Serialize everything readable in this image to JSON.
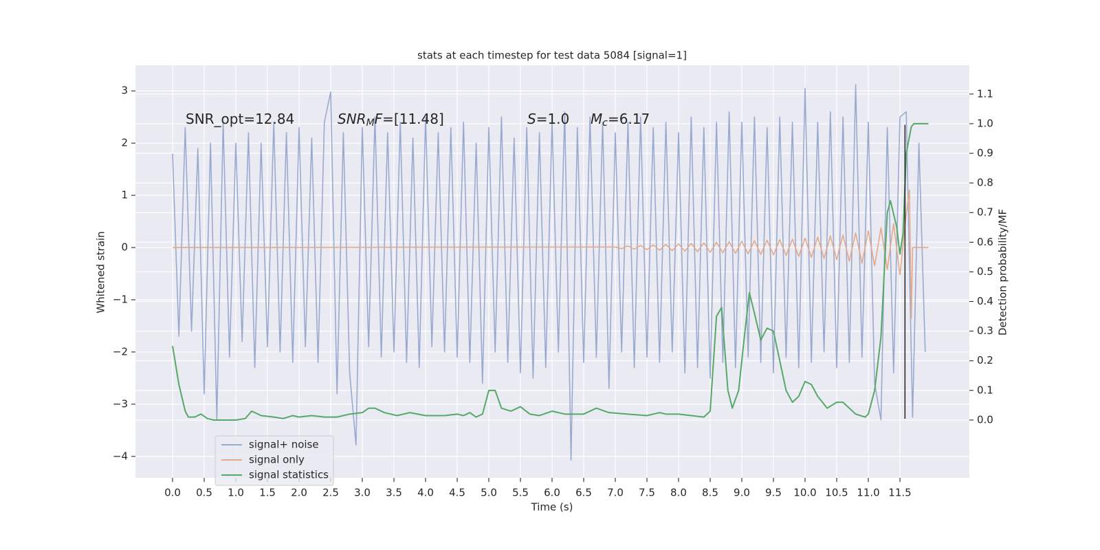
{
  "chart_data": {
    "type": "line",
    "title": "stats at each timestep for test data 5084 [signal=1]",
    "xlabel": "Time (s)",
    "ylabel": "Whitened strain",
    "y2label": "Detection probability/MF",
    "xlim": [
      -0.587,
      12.598
    ],
    "ylim": [
      -4.41,
      3.49
    ],
    "y2lim": [
      -0.195,
      1.197
    ],
    "xticks": [
      {
        "value": 0,
        "label": "0.0"
      },
      0.5,
      {
        "value": 1,
        "label": "1.0"
      },
      1.5,
      {
        "value": 2,
        "label": "2.0"
      },
      2.5,
      {
        "value": 3,
        "label": "3.0"
      },
      3.5,
      {
        "value": 4,
        "label": "4.0"
      },
      4.5,
      {
        "value": 5,
        "label": "5.0"
      },
      5.5,
      {
        "value": 6,
        "label": "6.0"
      },
      6.5,
      {
        "value": 7,
        "label": "7.0"
      },
      7.5,
      {
        "value": 8,
        "label": "8.0"
      },
      8.5,
      {
        "value": 9,
        "label": "9.0"
      },
      9.5,
      {
        "value": 10,
        "label": "10.0"
      },
      10.5,
      {
        "value": 11,
        "label": "11.0"
      },
      11.5
    ],
    "yticks": [
      {
        "value": -4,
        "label": "−4"
      },
      {
        "value": -3,
        "label": "−3"
      },
      {
        "value": -2,
        "label": "−2"
      },
      {
        "value": -1,
        "label": "−1"
      },
      0,
      1,
      2,
      3
    ],
    "y2ticks": [
      {
        "value": 0,
        "label": "0.0"
      },
      0.1,
      0.2,
      0.3,
      0.4,
      0.5,
      0.6,
      0.7,
      0.8,
      0.9,
      {
        "value": 1,
        "label": "1.0"
      },
      1.1
    ],
    "grid": true,
    "y2grid": true,
    "legend": "lower left",
    "series": [
      {
        "name": "signal+ noise",
        "color": "#9aaacf",
        "axis": "y",
        "x": [
          0.0,
          0.1,
          0.2,
          0.3,
          0.4,
          0.5,
          0.6,
          0.7,
          0.8,
          0.9,
          1.0,
          1.1,
          1.2,
          1.3,
          1.4,
          1.5,
          1.6,
          1.7,
          1.8,
          1.9,
          2.0,
          2.1,
          2.2,
          2.3,
          2.4,
          2.5,
          2.6,
          2.7,
          2.8,
          2.9,
          3.0,
          3.1,
          3.2,
          3.3,
          3.4,
          3.5,
          3.6,
          3.7,
          3.8,
          3.9,
          4.0,
          4.1,
          4.2,
          4.3,
          4.4,
          4.5,
          4.6,
          4.7,
          4.8,
          4.9,
          5.0,
          5.1,
          5.2,
          5.3,
          5.4,
          5.5,
          5.6,
          5.7,
          5.8,
          5.9,
          6.0,
          6.1,
          6.2,
          6.3,
          6.4,
          6.5,
          6.6,
          6.7,
          6.8,
          6.9,
          7.0,
          7.1,
          7.2,
          7.3,
          7.4,
          7.5,
          7.6,
          7.7,
          7.8,
          7.9,
          8.0,
          8.1,
          8.2,
          8.3,
          8.4,
          8.5,
          8.6,
          8.7,
          8.8,
          8.9,
          9.0,
          9.1,
          9.2,
          9.3,
          9.4,
          9.5,
          9.6,
          9.7,
          9.8,
          9.9,
          10.0,
          10.1,
          10.2,
          10.3,
          10.4,
          10.5,
          10.6,
          10.7,
          10.8,
          10.9,
          11.0,
          11.1,
          11.2,
          11.3,
          11.4,
          11.5,
          11.6,
          11.7,
          11.8,
          11.9
        ],
        "values": [
          1.8,
          -1.7,
          2.3,
          -1.6,
          1.9,
          -2.8,
          2.0,
          -3.3,
          2.4,
          -2.1,
          2.0,
          -1.8,
          2.2,
          -2.3,
          2.0,
          -1.9,
          2.4,
          -2.0,
          2.2,
          -2.2,
          2.3,
          -1.9,
          2.1,
          -2.2,
          2.4,
          2.98,
          -2.8,
          2.2,
          -2.4,
          -3.78,
          2.3,
          -1.9,
          2.5,
          -2.1,
          2.2,
          -2.0,
          2.4,
          -2.2,
          2.1,
          -2.3,
          2.5,
          -1.9,
          2.2,
          -2.0,
          2.3,
          -2.1,
          2.4,
          -2.2,
          2.0,
          -2.6,
          2.3,
          -2.0,
          2.5,
          -2.2,
          2.1,
          -2.4,
          2.3,
          -2.5,
          2.2,
          -2.3,
          2.4,
          -2.0,
          2.6,
          -4.07,
          2.3,
          -2.2,
          2.5,
          -2.1,
          2.4,
          -2.7,
          2.2,
          -2.0,
          2.4,
          -2.3,
          2.5,
          -2.1,
          2.3,
          -2.2,
          2.4,
          -2.0,
          2.2,
          -2.4,
          2.5,
          -2.3,
          2.3,
          -2.5,
          2.4,
          -2.2,
          2.6,
          -2.3,
          2.4,
          -2.1,
          2.5,
          -2.2,
          2.3,
          -2.4,
          2.5,
          -2.1,
          2.4,
          -2.3,
          3.05,
          -2.2,
          2.4,
          -2.0,
          2.6,
          -2.3,
          2.5,
          -2.2,
          3.12,
          -2.1,
          2.4,
          -2.6,
          -3.3,
          2.3,
          -2.4,
          2.5,
          2.6,
          -3.25,
          2.0,
          -2.0
        ]
      },
      {
        "name": "signal only",
        "color": "#e4a98a",
        "axis": "y",
        "x": [
          0.0,
          7.0,
          7.1,
          7.2,
          7.3,
          7.4,
          7.5,
          7.6,
          7.7,
          7.8,
          7.9,
          8.0,
          8.1,
          8.2,
          8.3,
          8.4,
          8.5,
          8.6,
          8.7,
          8.8,
          8.9,
          9.0,
          9.1,
          9.2,
          9.3,
          9.4,
          9.5,
          9.6,
          9.7,
          9.8,
          9.9,
          10.0,
          10.1,
          10.2,
          10.3,
          10.4,
          10.5,
          10.6,
          10.7,
          10.8,
          10.9,
          11.0,
          11.1,
          11.2,
          11.3,
          11.4,
          11.5,
          11.6,
          11.65,
          11.68,
          11.7,
          11.95
        ],
        "values": [
          0.0,
          0.01,
          -0.02,
          0.03,
          -0.03,
          0.04,
          -0.04,
          0.05,
          -0.05,
          0.06,
          -0.06,
          0.07,
          -0.07,
          0.08,
          -0.08,
          0.09,
          -0.09,
          0.1,
          -0.1,
          0.11,
          -0.11,
          0.12,
          -0.12,
          0.13,
          -0.13,
          0.14,
          -0.14,
          0.15,
          -0.15,
          0.16,
          -0.17,
          0.18,
          -0.19,
          0.2,
          -0.21,
          0.22,
          -0.23,
          0.24,
          -0.26,
          0.28,
          -0.3,
          0.32,
          -0.35,
          0.38,
          -0.42,
          0.46,
          -0.52,
          0.65,
          1.1,
          -1.35,
          0.0,
          0.0
        ]
      },
      {
        "name": "signal statistics",
        "color": "#55a868",
        "axis": "y2",
        "x": [
          0.0,
          0.1,
          0.2,
          0.25,
          0.35,
          0.45,
          0.55,
          0.65,
          0.8,
          1.0,
          1.15,
          1.25,
          1.4,
          1.6,
          1.75,
          1.9,
          2.0,
          2.2,
          2.4,
          2.6,
          2.8,
          3.0,
          3.1,
          3.2,
          3.35,
          3.55,
          3.75,
          4.0,
          4.3,
          4.5,
          4.6,
          4.7,
          4.8,
          4.9,
          5.0,
          5.1,
          5.2,
          5.35,
          5.5,
          5.65,
          5.8,
          6.0,
          6.2,
          6.5,
          6.7,
          6.9,
          7.2,
          7.5,
          7.7,
          7.8,
          8.0,
          8.2,
          8.4,
          8.5,
          8.6,
          8.68,
          8.78,
          8.85,
          8.95,
          9.05,
          9.12,
          9.2,
          9.3,
          9.4,
          9.5,
          9.6,
          9.7,
          9.8,
          9.9,
          10.0,
          10.1,
          10.2,
          10.35,
          10.5,
          10.6,
          10.7,
          10.8,
          10.95,
          11.0,
          11.1,
          11.2,
          11.3,
          11.35,
          11.45,
          11.5,
          11.55,
          11.6,
          11.68,
          11.72,
          11.95
        ],
        "values": [
          0.25,
          0.12,
          0.03,
          0.01,
          0.01,
          0.02,
          0.005,
          0.0,
          0.0,
          0.0,
          0.005,
          0.03,
          0.015,
          0.01,
          0.005,
          0.015,
          0.01,
          0.015,
          0.01,
          0.01,
          0.02,
          0.025,
          0.04,
          0.04,
          0.025,
          0.015,
          0.025,
          0.015,
          0.015,
          0.02,
          0.015,
          0.025,
          0.01,
          0.02,
          0.1,
          0.1,
          0.04,
          0.03,
          0.045,
          0.02,
          0.015,
          0.03,
          0.02,
          0.02,
          0.04,
          0.025,
          0.02,
          0.015,
          0.025,
          0.02,
          0.02,
          0.015,
          0.01,
          0.03,
          0.35,
          0.38,
          0.1,
          0.04,
          0.1,
          0.3,
          0.43,
          0.36,
          0.27,
          0.31,
          0.3,
          0.2,
          0.1,
          0.06,
          0.08,
          0.13,
          0.12,
          0.08,
          0.04,
          0.06,
          0.06,
          0.04,
          0.02,
          0.01,
          0.02,
          0.1,
          0.28,
          0.7,
          0.74,
          0.65,
          0.56,
          0.63,
          0.9,
          0.99,
          1.0,
          1.0
        ]
      }
    ],
    "vline": {
      "x": 11.58,
      "ymin": -3.28,
      "ymax": 2.35,
      "color": "#222222"
    },
    "annotations": [
      {
        "parts": [
          {
            "text": "SNR_opt=12.84"
          }
        ]
      },
      {
        "parts": [
          {
            "text": "SNR",
            "style": "italic"
          },
          {
            "text": "M",
            "style": "italic-sub"
          },
          {
            "text": "F",
            "style": "italic"
          },
          {
            "text": "=[11.48]"
          }
        ]
      },
      {
        "parts": [
          {
            "text": "S",
            "style": "italic"
          },
          {
            "text": "=1.0"
          }
        ]
      },
      {
        "parts": [
          {
            "text": "M",
            "style": "italic"
          },
          {
            "text": "c",
            "style": "italic-sub"
          },
          {
            "text": "=6.17"
          }
        ]
      }
    ]
  }
}
